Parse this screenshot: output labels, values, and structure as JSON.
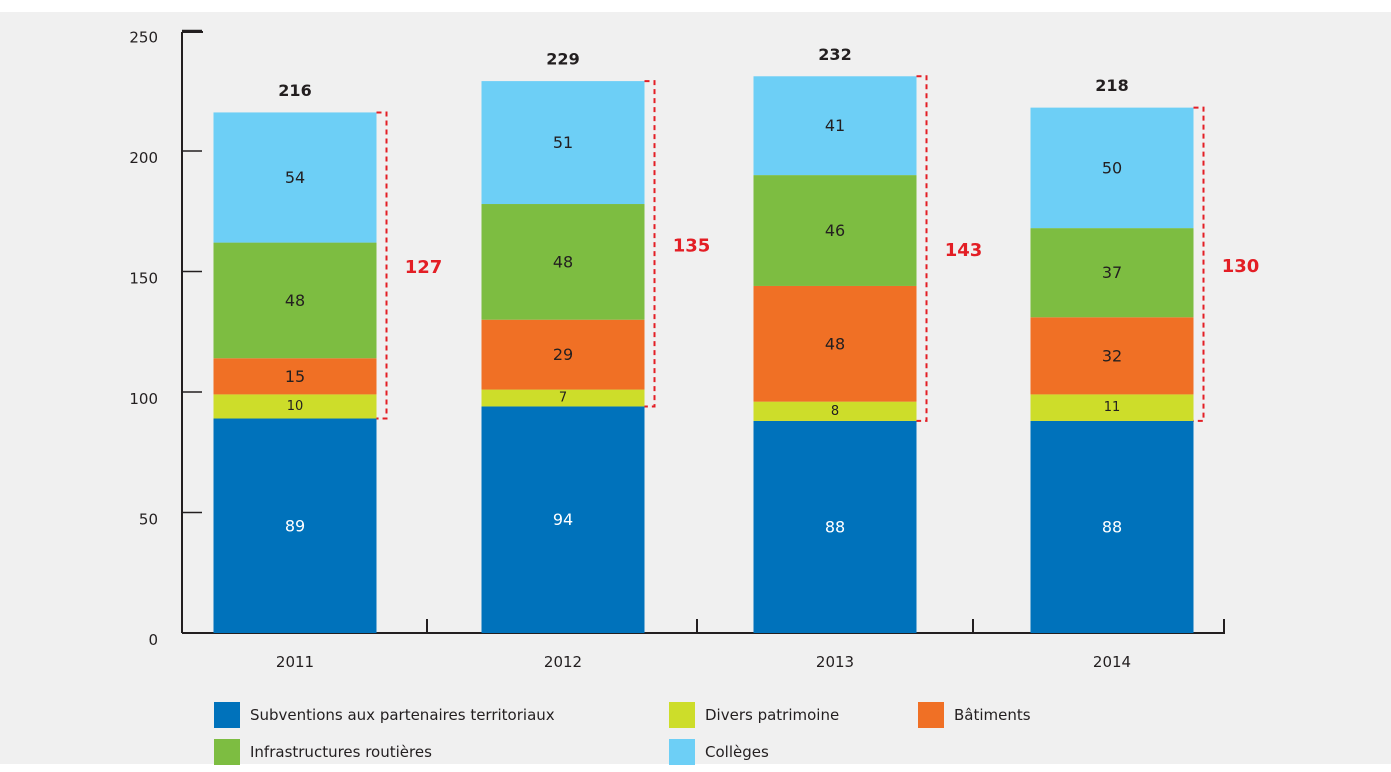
{
  "chart_data": {
    "type": "bar",
    "stacked": true,
    "categories": [
      "2011",
      "2012",
      "2013",
      "2014"
    ],
    "y_ticks": [
      0,
      50,
      100,
      150,
      200,
      250
    ],
    "ylim": [
      0,
      250
    ],
    "series": [
      {
        "name": "Subventions aux partenaires territoriaux",
        "color": "#0072bb",
        "label_color": "#ffffff",
        "values": [
          89,
          94,
          88,
          88
        ]
      },
      {
        "name": "Divers patrimoine",
        "color": "#cddd2a",
        "label_color": "#231f20",
        "values": [
          10,
          7,
          8,
          11
        ]
      },
      {
        "name": "Bâtiments",
        "color": "#f07025",
        "label_color": "#231f20",
        "values": [
          15,
          29,
          48,
          32
        ]
      },
      {
        "name": "Infrastructures routières",
        "color": "#7dbd41",
        "label_color": "#231f20",
        "values": [
          48,
          48,
          46,
          37
        ]
      },
      {
        "name": "Collèges",
        "color": "#6dcff6",
        "label_color": "#231f20",
        "values": [
          54,
          51,
          41,
          50
        ]
      }
    ],
    "totals": [
      216,
      229,
      232,
      218
    ],
    "bracket_totals": [
      127,
      135,
      143,
      130
    ],
    "bracket_color": "#e31e25",
    "legend_position": "bottom",
    "grid": false
  }
}
